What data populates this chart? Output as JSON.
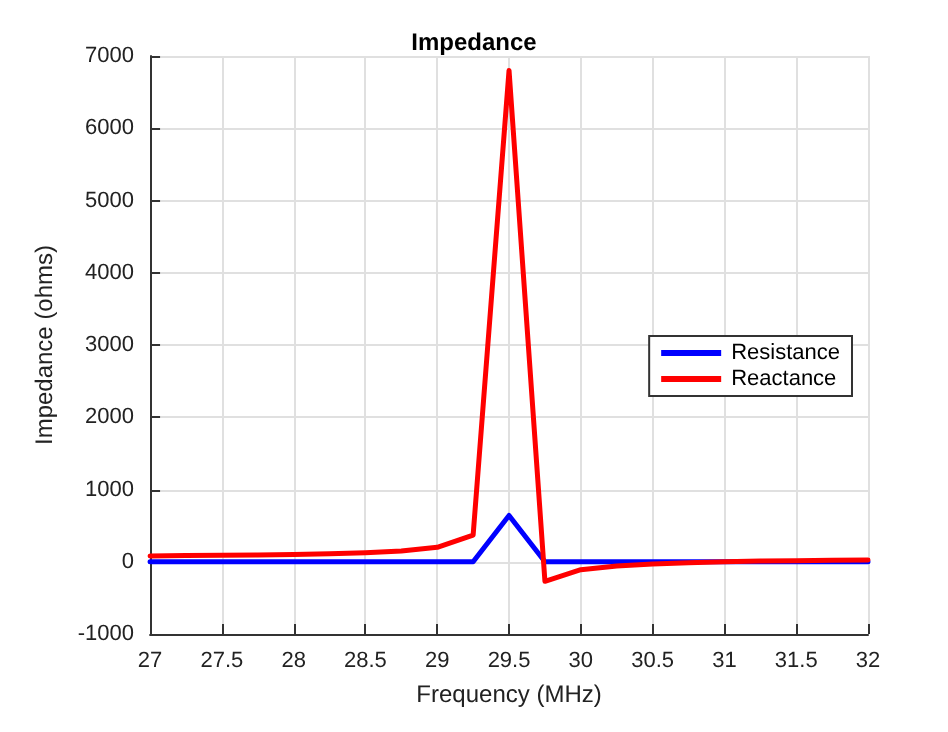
{
  "chart_data": {
    "type": "line",
    "title": "Impedance",
    "xlabel": "Frequency (MHz)",
    "ylabel": "Impedance (ohms)",
    "x": [
      27,
      27.25,
      27.5,
      27.75,
      28,
      28.25,
      28.5,
      28.75,
      29,
      29.25,
      29.5,
      29.75,
      30,
      30.25,
      30.5,
      30.75,
      31,
      31.25,
      31.5,
      31.75,
      32
    ],
    "series": [
      {
        "name": "Resistance",
        "color": "#0000ff",
        "values": [
          0,
          0,
          0,
          0,
          0,
          0,
          0,
          0,
          0,
          0,
          640,
          0,
          0,
          0,
          0,
          0,
          0,
          0,
          0,
          0,
          0
        ]
      },
      {
        "name": "Reactance",
        "color": "#ff0000",
        "values": [
          80,
          85,
          90,
          95,
          100,
          110,
          125,
          150,
          200,
          370,
          6800,
          -270,
          -110,
          -60,
          -30,
          -15,
          0,
          10,
          15,
          20,
          25
        ]
      }
    ],
    "xlim": [
      27,
      32
    ],
    "xticks": [
      27,
      27.5,
      28,
      28.5,
      29,
      29.5,
      30,
      30.5,
      31,
      31.5,
      32
    ],
    "ylim": [
      -1000,
      7000
    ],
    "yticks": [
      -1000,
      0,
      1000,
      2000,
      3000,
      4000,
      5000,
      6000,
      7000
    ],
    "grid": true,
    "legend": "right",
    "marker": "none",
    "line_style": "solid"
  }
}
